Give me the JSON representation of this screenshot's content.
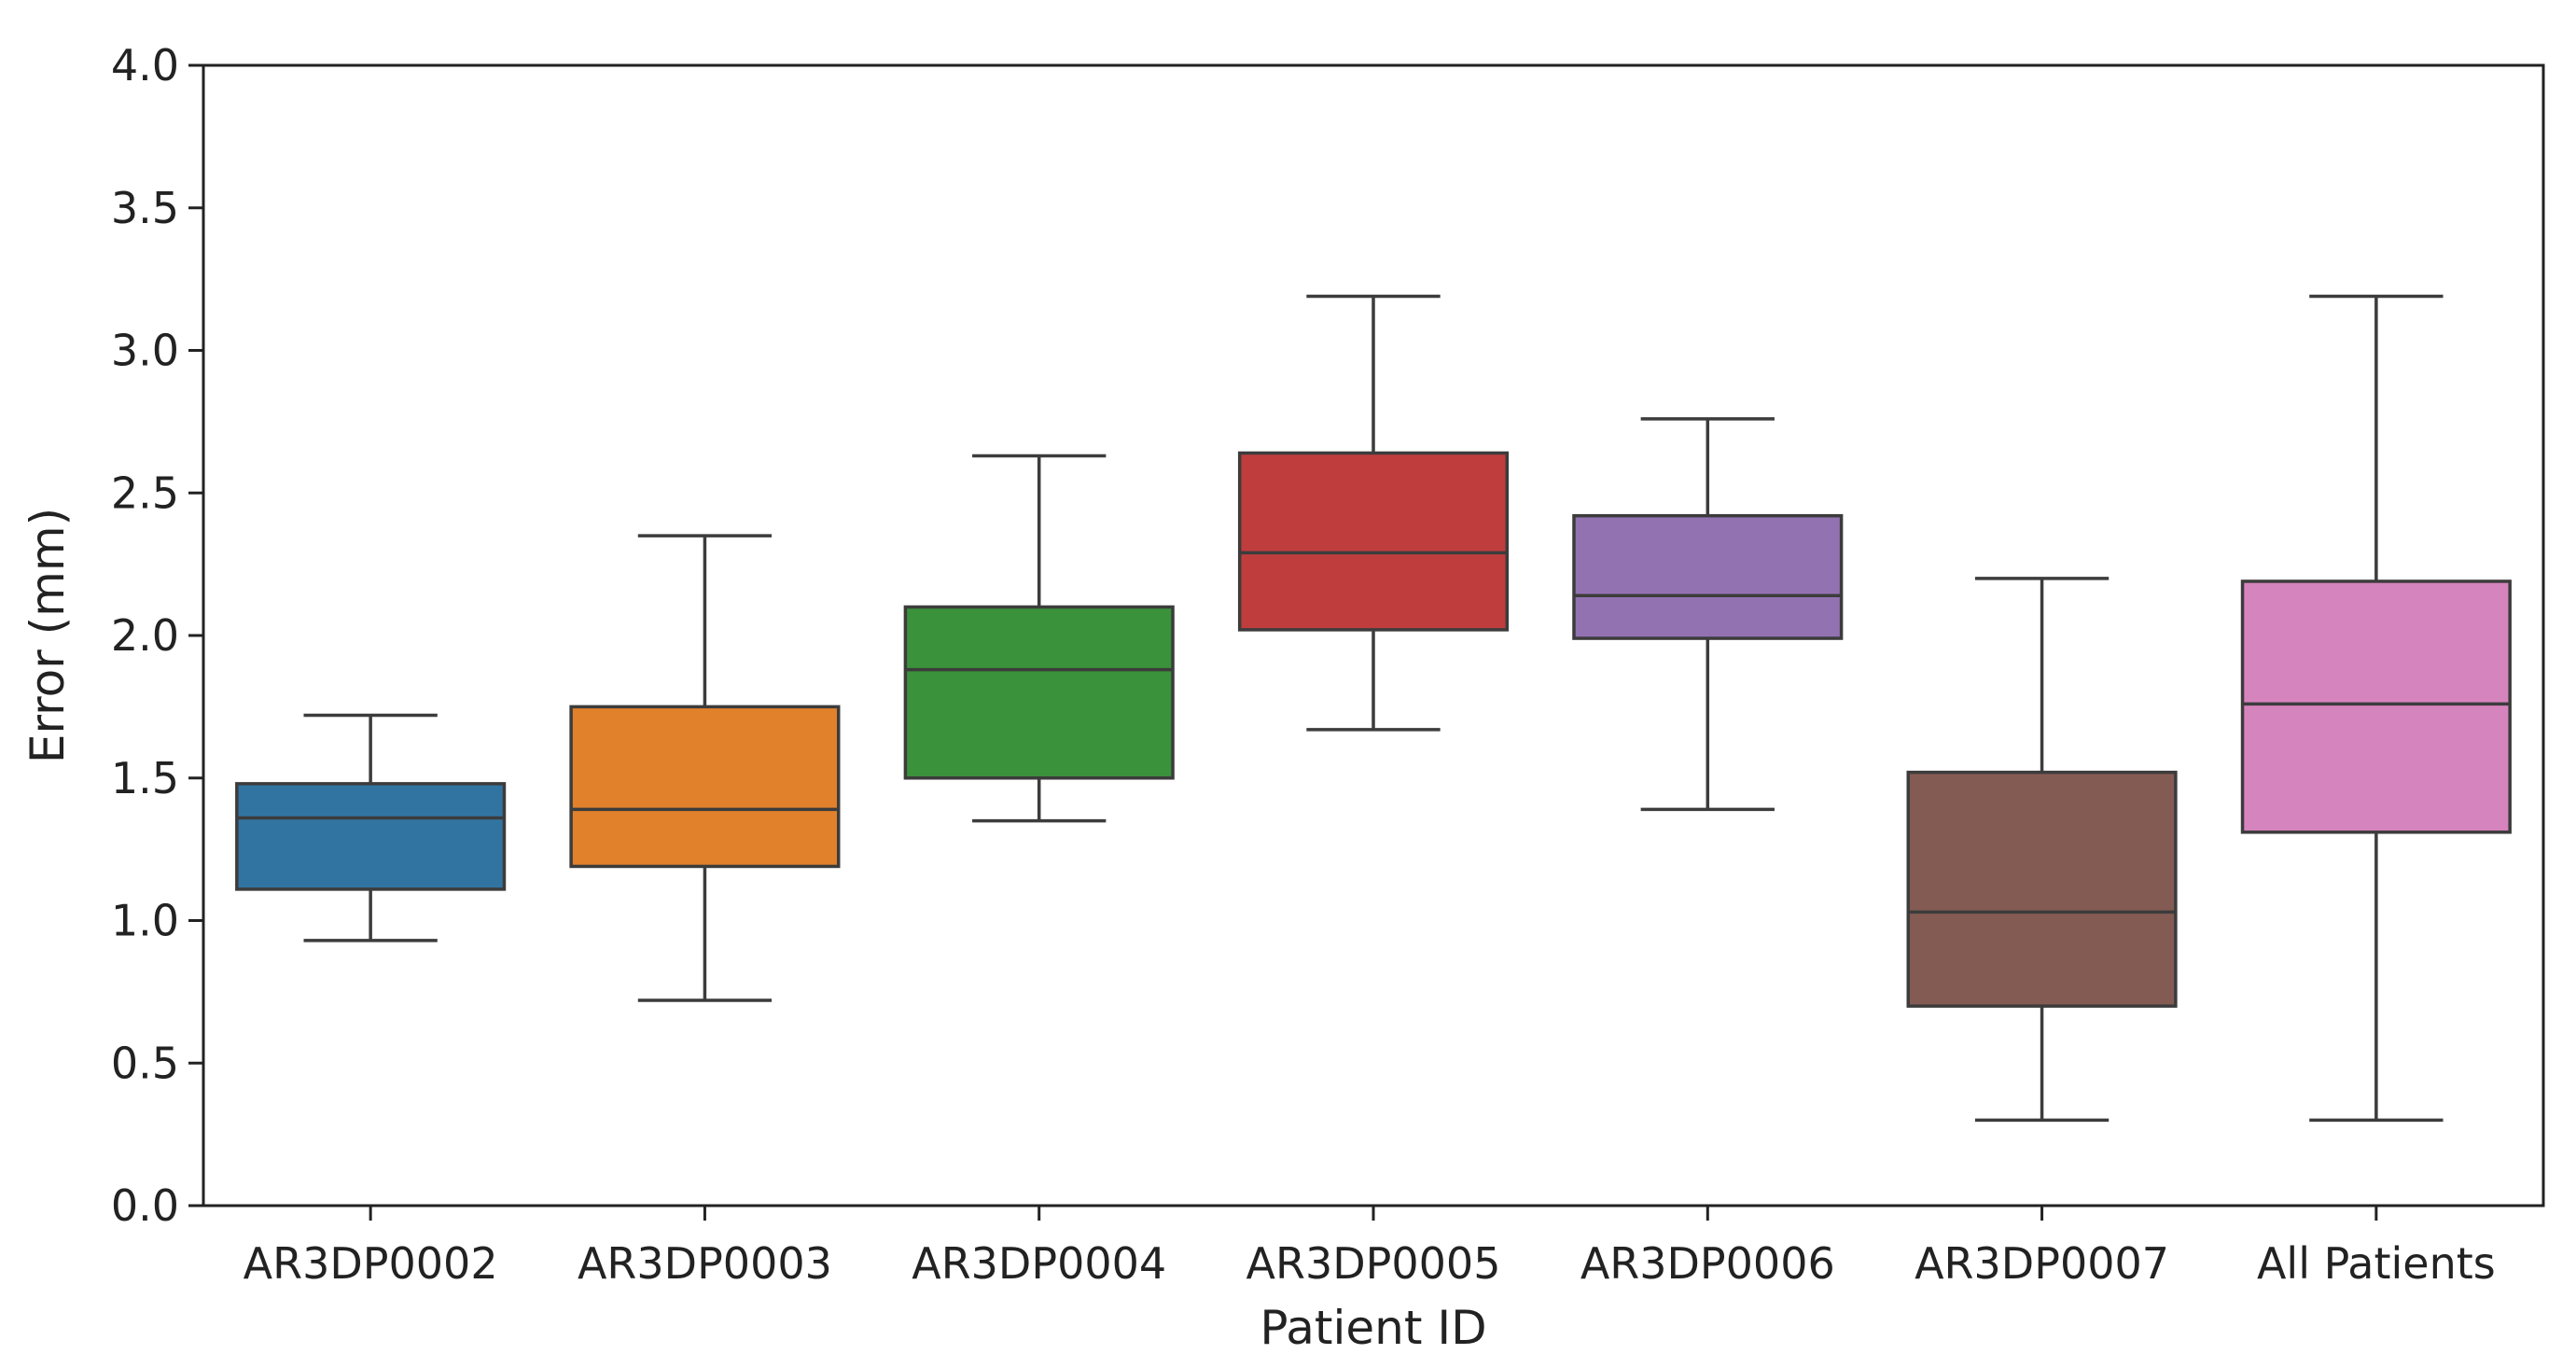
{
  "chart_data": {
    "type": "box",
    "xlabel": "Patient ID",
    "ylabel": "Error (mm)",
    "ylim": [
      0.0,
      4.0
    ],
    "yticks": [
      "0.0",
      "0.5",
      "1.0",
      "1.5",
      "2.0",
      "2.5",
      "3.0",
      "3.5",
      "4.0"
    ],
    "grid": false,
    "categories": [
      "AR3DP0002",
      "AR3DP0003",
      "AR3DP0004",
      "AR3DP0005",
      "AR3DP0006",
      "AR3DP0007",
      "All Patients"
    ],
    "boxes": [
      {
        "category": "AR3DP0002",
        "whisker_low": 0.93,
        "q1": 1.11,
        "median": 1.36,
        "q3": 1.48,
        "whisker_high": 1.72,
        "color": "#3274a1"
      },
      {
        "category": "AR3DP0003",
        "whisker_low": 0.72,
        "q1": 1.19,
        "median": 1.39,
        "q3": 1.75,
        "whisker_high": 2.35,
        "color": "#e1812c"
      },
      {
        "category": "AR3DP0004",
        "whisker_low": 1.35,
        "q1": 1.5,
        "median": 1.88,
        "q3": 2.1,
        "whisker_high": 2.63,
        "color": "#3a923a"
      },
      {
        "category": "AR3DP0005",
        "whisker_low": 1.67,
        "q1": 2.02,
        "median": 2.29,
        "q3": 2.64,
        "whisker_high": 3.19,
        "color": "#c03d3e"
      },
      {
        "category": "AR3DP0006",
        "whisker_low": 1.39,
        "q1": 1.99,
        "median": 2.14,
        "q3": 2.42,
        "whisker_high": 2.76,
        "color": "#9372b2"
      },
      {
        "category": "AR3DP0007",
        "whisker_low": 0.3,
        "q1": 0.7,
        "median": 1.03,
        "q3": 1.52,
        "whisker_high": 2.2,
        "color": "#845b53"
      },
      {
        "category": "All Patients",
        "whisker_low": 0.3,
        "q1": 1.31,
        "median": 1.76,
        "q3": 2.19,
        "whisker_high": 3.19,
        "color": "#d684bd"
      }
    ],
    "line_color": "#3c3c3c"
  }
}
